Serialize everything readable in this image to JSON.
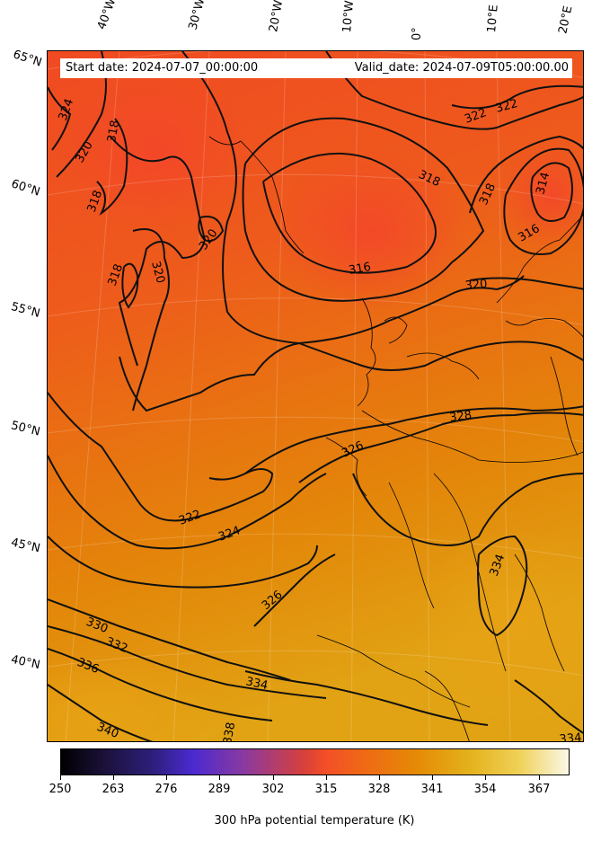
{
  "header": {
    "start_date": "Start date: 2024-07-07_00:00:00",
    "valid_date": "Valid_date: 2024-07-09T05:00:00.00"
  },
  "longitude_labels": [
    "40°W",
    "30°W",
    "20°W",
    "10°W",
    "0°",
    "10°E",
    "20°E"
  ],
  "latitude_labels": [
    "65°N",
    "60°N",
    "55°N",
    "50°N",
    "45°N",
    "40°N"
  ],
  "contour_labels": [
    "324",
    "318",
    "320",
    "318",
    "320",
    "320",
    "318",
    "316",
    "318",
    "322",
    "322",
    "318",
    "314",
    "316",
    "320",
    "328",
    "326",
    "322",
    "324",
    "326",
    "330",
    "332",
    "336",
    "334",
    "340",
    "338",
    "334",
    "334"
  ],
  "colorbar": {
    "ticks": [
      "250",
      "263",
      "276",
      "289",
      "302",
      "315",
      "328",
      "341",
      "354",
      "367"
    ],
    "label": "300 hPa potential temperature (K)",
    "range": [
      250,
      375
    ],
    "colormap_stops": [
      "#000000",
      "#2d1f7a",
      "#4b2ad0",
      "#8a3aa0",
      "#d8403a",
      "#f24f28",
      "#ef6a15",
      "#e58a05",
      "#e4b01a",
      "#efd055",
      "#fbf8e6"
    ]
  }
}
